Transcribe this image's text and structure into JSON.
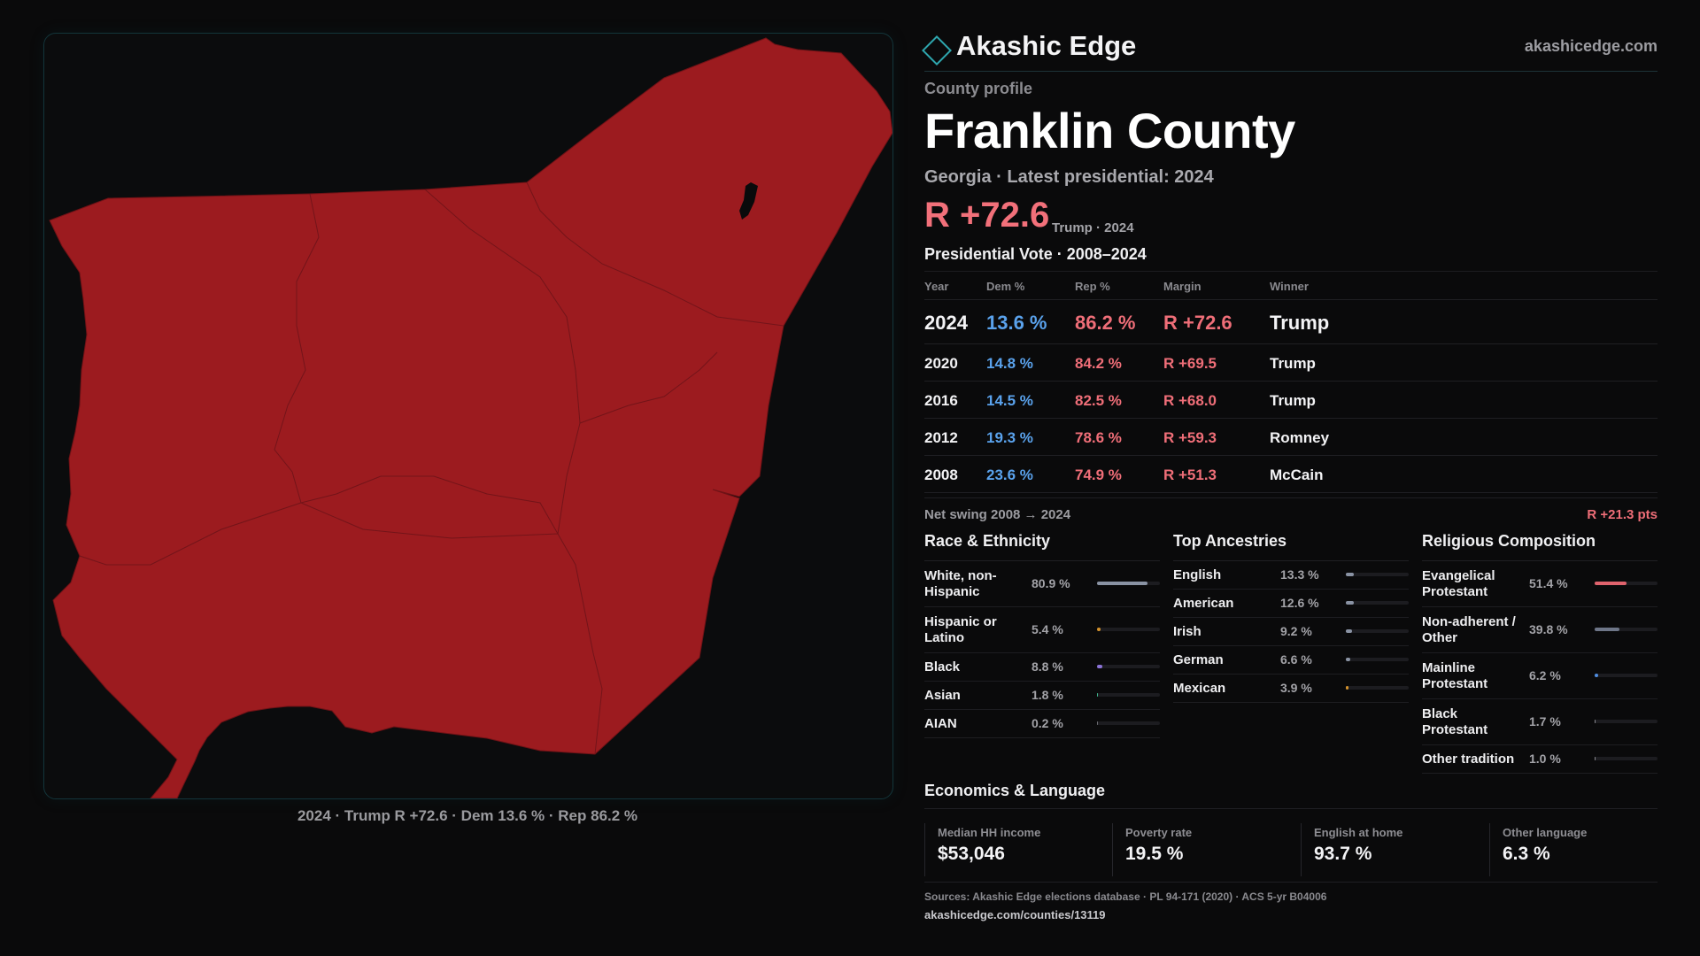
{
  "brand": {
    "name": "Akashic Edge",
    "url": "akashicedge.com"
  },
  "profile": {
    "kicker": "County profile",
    "county": "Franklin County",
    "subtitle": "Georgia · Latest presidential: 2024",
    "headline_margin": "R +72.6",
    "headline_note": "Trump · 2024"
  },
  "map": {
    "caption": "2024 · Trump R +72.6 · Dem 13.6 % · Rep 86.2 %",
    "fill_color": "#9c1b1f",
    "border_color": "#13353a"
  },
  "vote_history": {
    "title": "Presidential Vote · 2008–2024",
    "columns": [
      "Year",
      "Dem %",
      "Rep %",
      "Margin",
      "Winner"
    ],
    "rows": [
      {
        "year": "2024",
        "dem": "13.6 %",
        "rep": "86.2 %",
        "margin": "R +72.6",
        "winner": "Trump"
      },
      {
        "year": "2020",
        "dem": "14.8 %",
        "rep": "84.2 %",
        "margin": "R +69.5",
        "winner": "Trump"
      },
      {
        "year": "2016",
        "dem": "14.5 %",
        "rep": "82.5 %",
        "margin": "R +68.0",
        "winner": "Trump"
      },
      {
        "year": "2012",
        "dem": "19.3 %",
        "rep": "78.6 %",
        "margin": "R +59.3",
        "winner": "Romney"
      },
      {
        "year": "2008",
        "dem": "23.6 %",
        "rep": "74.9 %",
        "margin": "R +51.3",
        "winner": "McCain"
      }
    ],
    "swing_label": "Net swing 2008 → 2024",
    "swing_value": "R +21.3 pts"
  },
  "race": {
    "title": "Race & Ethnicity",
    "items": [
      {
        "name": "White, non-Hispanic",
        "value": "80.9 %",
        "share": 0.809,
        "color": "#8a93a4"
      },
      {
        "name": "Hispanic or Latino",
        "value": "5.4 %",
        "share": 0.054,
        "color": "#d4922c"
      },
      {
        "name": "Black",
        "value": "8.8 %",
        "share": 0.088,
        "color": "#8b73d6"
      },
      {
        "name": "Asian",
        "value": "1.8 %",
        "share": 0.018,
        "color": "#3fb58c"
      },
      {
        "name": "AIAN",
        "value": "0.2 %",
        "share": 0.002,
        "color": "#6b6b72"
      }
    ]
  },
  "ancestry": {
    "title": "Top Ancestries",
    "items": [
      {
        "name": "English",
        "value": "13.3 %",
        "share": 0.133,
        "color": "#8a93a4"
      },
      {
        "name": "American",
        "value": "12.6 %",
        "share": 0.126,
        "color": "#8a93a4"
      },
      {
        "name": "Irish",
        "value": "9.2 %",
        "share": 0.092,
        "color": "#8a93a4"
      },
      {
        "name": "German",
        "value": "6.6 %",
        "share": 0.066,
        "color": "#8a93a4"
      },
      {
        "name": "Mexican",
        "value": "3.9 %",
        "share": 0.039,
        "color": "#d4922c"
      }
    ]
  },
  "religion": {
    "title": "Religious Composition",
    "items": [
      {
        "name": "Evangelical Protestant",
        "value": "51.4 %",
        "share": 0.514,
        "color": "#e0636d"
      },
      {
        "name": "Non-adherent / Other",
        "value": "39.8 %",
        "share": 0.398,
        "color": "#6e7688"
      },
      {
        "name": "Mainline Protestant",
        "value": "6.2 %",
        "share": 0.062,
        "color": "#4f8de0"
      },
      {
        "name": "Black Protestant",
        "value": "1.7 %",
        "share": 0.017,
        "color": "#8b8b92"
      },
      {
        "name": "Other tradition",
        "value": "1.0 %",
        "share": 0.01,
        "color": "#8b8b92"
      }
    ]
  },
  "economics": {
    "title": "Economics & Language",
    "items": [
      {
        "label": "Median HH income",
        "value": "$53,046"
      },
      {
        "label": "Poverty rate",
        "value": "19.5 %"
      },
      {
        "label": "English at home",
        "value": "93.7 %"
      },
      {
        "label": "Other language",
        "value": "6.3 %"
      }
    ]
  },
  "footer": {
    "sources": "Sources: Akashic Edge elections database · PL 94-171 (2020) · ACS 5-yr B04006",
    "url": "akashicedge.com/counties/13119"
  }
}
